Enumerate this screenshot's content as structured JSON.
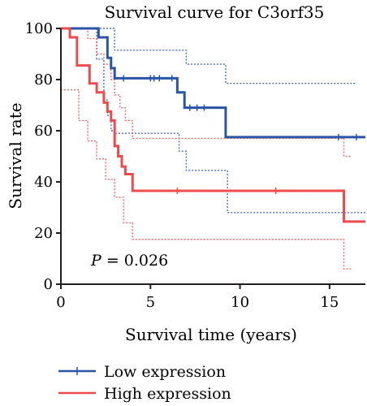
{
  "chart_data": {
    "type": "line",
    "title": "Survival curve for C3orf35",
    "xlabel": "Survival time (years)",
    "ylabel": "Survival rate",
    "xlim": [
      0,
      17
    ],
    "ylim": [
      0,
      100
    ],
    "xticks": [
      "0",
      "5",
      "10",
      "15"
    ],
    "yticks": [
      "0",
      "20",
      "40",
      "60",
      "80",
      "100"
    ],
    "annotation": {
      "italic": "P",
      "text": " = 0.026"
    },
    "series": [
      {
        "name": "Low expression",
        "color": "#2a55a7",
        "steps": [
          [
            0,
            100
          ],
          [
            2.1,
            96.5
          ],
          [
            2.6,
            88.5
          ],
          [
            2.8,
            84.5
          ],
          [
            3,
            80.5
          ],
          [
            6.5,
            75
          ],
          [
            6.9,
            69
          ],
          [
            9.2,
            57.5
          ],
          [
            17,
            57.5
          ]
        ],
        "ci_upper": [
          [
            0,
            100
          ],
          [
            2.1,
            100
          ],
          [
            3,
            91.5
          ],
          [
            6.5,
            91.5
          ],
          [
            7,
            86
          ],
          [
            9.2,
            78.5
          ],
          [
            16.5,
            78.5
          ]
        ],
        "ci_lower": [
          [
            0,
            100
          ],
          [
            2,
            88
          ],
          [
            2.4,
            72
          ],
          [
            2.6,
            66
          ],
          [
            2.8,
            60
          ],
          [
            3,
            59
          ],
          [
            6.5,
            59
          ],
          [
            6.6,
            52
          ],
          [
            7,
            44.5
          ],
          [
            9.2,
            44.5
          ],
          [
            9.3,
            28
          ],
          [
            17,
            28
          ]
        ],
        "censor_x": [
          3.5,
          5,
          5.2,
          5.5,
          6.2,
          7.2,
          7.6,
          8,
          15.5,
          16.5
        ]
      },
      {
        "name": "High expression",
        "color": "#ef4b4e",
        "steps": [
          [
            0,
            100
          ],
          [
            0.5,
            96.5
          ],
          [
            0.9,
            85.5
          ],
          [
            1.6,
            78.5
          ],
          [
            2,
            75
          ],
          [
            2.4,
            71
          ],
          [
            2.6,
            67.5
          ],
          [
            2.8,
            64
          ],
          [
            3,
            54
          ],
          [
            3.2,
            50
          ],
          [
            3.4,
            46
          ],
          [
            3.6,
            43
          ],
          [
            4,
            36.5
          ],
          [
            15.8,
            36.5
          ],
          [
            15.8,
            24.5
          ],
          [
            17,
            24.5
          ]
        ],
        "ci_upper": [
          [
            0,
            100
          ],
          [
            1,
            100
          ],
          [
            1.5,
            96
          ],
          [
            2,
            90
          ],
          [
            2.4,
            86
          ],
          [
            2.8,
            80
          ],
          [
            3,
            74
          ],
          [
            3.3,
            69
          ],
          [
            3.6,
            64
          ],
          [
            4,
            57
          ],
          [
            15.8,
            57
          ],
          [
            15.8,
            50
          ],
          [
            16.2,
            50
          ]
        ],
        "ci_lower": [
          [
            0,
            76
          ],
          [
            1,
            64
          ],
          [
            1.5,
            56
          ],
          [
            2,
            49
          ],
          [
            2.5,
            41
          ],
          [
            3,
            34
          ],
          [
            3.5,
            24
          ],
          [
            4,
            17.5
          ],
          [
            15.8,
            17.5
          ],
          [
            15.8,
            6
          ],
          [
            16.2,
            6
          ]
        ],
        "censor_x": [
          6.5,
          12
        ]
      }
    ]
  }
}
